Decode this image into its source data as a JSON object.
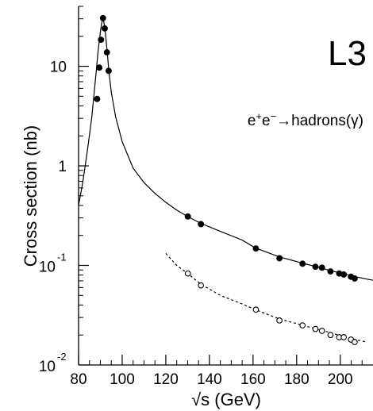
{
  "chart_data": {
    "type": "scatter",
    "title": "L3",
    "annotation": {
      "parts": [
        {
          "text": "e",
          "script": "base"
        },
        {
          "text": "+",
          "script": "sup"
        },
        {
          "text": "e",
          "script": "base"
        },
        {
          "text": "−",
          "script": "sup"
        },
        {
          "text": "→hadrons(γ)",
          "script": "base"
        }
      ]
    },
    "xlabel": "√s (GeV)",
    "ylabel": "Cross section (nb)",
    "xscale": "linear",
    "yscale": "log",
    "xlim": [
      80,
      215
    ],
    "ylim": [
      0.01,
      40
    ],
    "xticks": [
      80,
      100,
      120,
      140,
      160,
      180,
      200
    ],
    "yticks": [
      {
        "value": 10,
        "base": "10",
        "exp": ""
      },
      {
        "value": 1,
        "base": "1",
        "exp": ""
      },
      {
        "value": 0.1,
        "base": "10",
        "exp": "-1"
      },
      {
        "value": 0.01,
        "base": "10",
        "exp": "-2"
      }
    ],
    "grid": false,
    "series": [
      {
        "marker": "filled-circle",
        "color": "#000000",
        "x": [
          88.5,
          89.5,
          90.3,
          91.2,
          92.0,
          93.0,
          93.8,
          130.1,
          136.1,
          161.3,
          172.1,
          182.7,
          188.6,
          191.6,
          195.5,
          199.5,
          201.6,
          204.9,
          206.6
        ],
        "y": [
          4.7,
          9.7,
          18.5,
          30.5,
          24.0,
          13.8,
          9.0,
          0.31,
          0.26,
          0.148,
          0.118,
          0.104,
          0.097,
          0.095,
          0.087,
          0.083,
          0.081,
          0.077,
          0.074
        ]
      },
      {
        "marker": "open-circle",
        "color": "#000000",
        "x": [
          130.1,
          136.1,
          161.3,
          172.1,
          182.7,
          188.6,
          191.6,
          195.5,
          199.5,
          201.6,
          204.9,
          206.6
        ],
        "y": [
          0.083,
          0.063,
          0.036,
          0.028,
          0.025,
          0.023,
          0.022,
          0.02,
          0.019,
          0.019,
          0.018,
          0.017
        ]
      }
    ],
    "curves": [
      {
        "style": "solid",
        "color": "#000000",
        "x": [
          80,
          82,
          84,
          86,
          87,
          88,
          89,
          90,
          90.5,
          91.2,
          92,
          93,
          94,
          95,
          97,
          100,
          105,
          110,
          115,
          120,
          125,
          130,
          136,
          145,
          155,
          161,
          172,
          183,
          189,
          196,
          202,
          207,
          212,
          215
        ],
        "y": [
          0.4,
          0.7,
          1.4,
          3.0,
          5.0,
          8.5,
          14.5,
          22.0,
          26.5,
          30.5,
          25.0,
          15.0,
          8.5,
          5.5,
          3.1,
          1.75,
          0.95,
          0.68,
          0.53,
          0.43,
          0.36,
          0.31,
          0.265,
          0.22,
          0.18,
          0.15,
          0.122,
          0.105,
          0.097,
          0.088,
          0.082,
          0.077,
          0.073,
          0.071
        ]
      },
      {
        "style": "dashed",
        "color": "#000000",
        "x": [
          120,
          125,
          130,
          136,
          145,
          155,
          161,
          172,
          183,
          189,
          196,
          202,
          207,
          212
        ],
        "y": [
          0.132,
          0.1,
          0.083,
          0.065,
          0.05,
          0.041,
          0.036,
          0.029,
          0.025,
          0.023,
          0.021,
          0.019,
          0.018,
          0.017
        ]
      }
    ]
  }
}
